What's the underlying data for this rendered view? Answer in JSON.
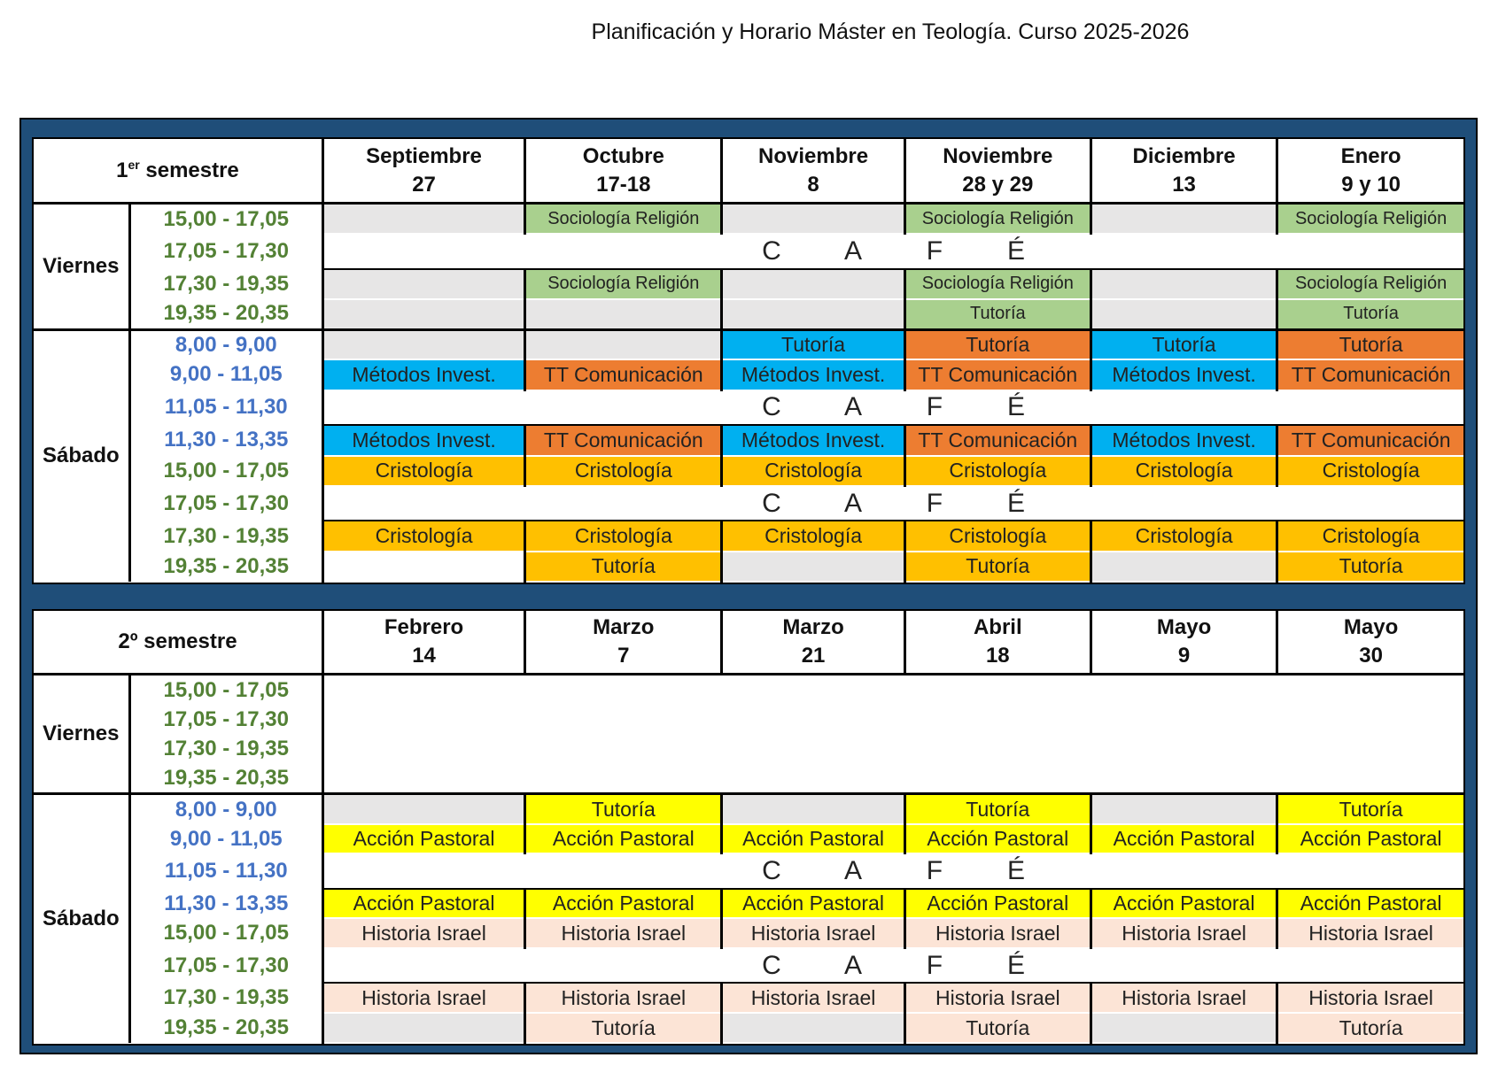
{
  "title": "Planificación y Horario Máster en Teología. Curso 2025-2026",
  "cafe_letters": [
    "C",
    "A",
    "F",
    "É"
  ],
  "semesters": [
    {
      "label_main": "1",
      "label_sup": "er",
      "label_rest": " semestre",
      "dates": [
        {
          "month": "Septiembre",
          "day": "27"
        },
        {
          "month": "Octubre",
          "day": "17-18"
        },
        {
          "month": "Noviembre",
          "day": "8"
        },
        {
          "month": "Noviembre",
          "day": "28 y 29"
        },
        {
          "month": "Diciembre",
          "day": "13"
        },
        {
          "month": "Enero",
          "day": "9 y 10"
        }
      ],
      "viernes": {
        "label": "Viernes",
        "rows": [
          {
            "time": "15,00 - 17,05",
            "cells": [
              {
                "t": "",
                "c": "gray"
              },
              {
                "t": "Sociología Religión",
                "c": "green"
              },
              {
                "t": "",
                "c": "gray"
              },
              {
                "t": "Sociología Religión",
                "c": "green"
              },
              {
                "t": "",
                "c": "gray"
              },
              {
                "t": "Sociología Religión",
                "c": "green"
              }
            ]
          },
          {
            "time": "17,05 - 17,30",
            "cafe": true
          },
          {
            "time": "17,30 - 19,35",
            "cells": [
              {
                "t": "",
                "c": "gray"
              },
              {
                "t": "Sociología Religión",
                "c": "green"
              },
              {
                "t": "",
                "c": "gray"
              },
              {
                "t": "Sociología Religión",
                "c": "green"
              },
              {
                "t": "",
                "c": "gray"
              },
              {
                "t": "Sociología Religión",
                "c": "green"
              }
            ]
          },
          {
            "time": "19,35 - 20,35",
            "cells": [
              {
                "t": "",
                "c": "gray"
              },
              {
                "t": "",
                "c": "gray"
              },
              {
                "t": "",
                "c": "gray"
              },
              {
                "t": "Tutoría",
                "c": "green"
              },
              {
                "t": "",
                "c": "gray"
              },
              {
                "t": "Tutoría",
                "c": "green"
              }
            ]
          }
        ]
      },
      "sabado": {
        "label": "Sábado",
        "rows": [
          {
            "time": "8,00 - 9,00",
            "cells": [
              {
                "t": "",
                "c": "gray"
              },
              {
                "t": "",
                "c": "gray"
              },
              {
                "t": "Tutoría",
                "c": "cyan"
              },
              {
                "t": "Tutoría",
                "c": "orange"
              },
              {
                "t": "Tutoría",
                "c": "cyan"
              },
              {
                "t": "Tutoría",
                "c": "orange"
              }
            ]
          },
          {
            "time": "9,00 - 11,05",
            "cells": [
              {
                "t": "Métodos Invest.",
                "c": "cyan"
              },
              {
                "t": "TT Comunicación",
                "c": "orange"
              },
              {
                "t": "Métodos Invest.",
                "c": "cyan"
              },
              {
                "t": "TT Comunicación",
                "c": "orange"
              },
              {
                "t": "Métodos Invest.",
                "c": "cyan"
              },
              {
                "t": "TT Comunicación",
                "c": "orange"
              }
            ]
          },
          {
            "time": "11,05 - 11,30",
            "cafe": true
          },
          {
            "time": "11,30 - 13,35",
            "cells": [
              {
                "t": "Métodos Invest.",
                "c": "cyan"
              },
              {
                "t": "TT Comunicación",
                "c": "orange"
              },
              {
                "t": "Métodos Invest.",
                "c": "cyan"
              },
              {
                "t": "TT Comunicación",
                "c": "orange"
              },
              {
                "t": "Métodos Invest.",
                "c": "cyan"
              },
              {
                "t": "TT Comunicación",
                "c": "orange"
              }
            ]
          },
          {
            "time": "15,00 - 17,05",
            "cells": [
              {
                "t": "Cristología",
                "c": "amber"
              },
              {
                "t": "Cristología",
                "c": "amber"
              },
              {
                "t": "Cristología",
                "c": "amber"
              },
              {
                "t": "Cristología",
                "c": "amber"
              },
              {
                "t": "Cristología",
                "c": "amber"
              },
              {
                "t": "Cristología",
                "c": "amber"
              }
            ]
          },
          {
            "time": "17,05 - 17,30",
            "cafe": true
          },
          {
            "time": "17,30 - 19,35",
            "cells": [
              {
                "t": "Cristología",
                "c": "amber"
              },
              {
                "t": "Cristología",
                "c": "amber"
              },
              {
                "t": "Cristología",
                "c": "amber"
              },
              {
                "t": "Cristología",
                "c": "amber"
              },
              {
                "t": "Cristología",
                "c": "amber"
              },
              {
                "t": "Cristología",
                "c": "amber"
              }
            ]
          },
          {
            "time": "19,35 - 20,35",
            "cells": [
              {
                "t": "",
                "c": "white"
              },
              {
                "t": "Tutoría",
                "c": "amber"
              },
              {
                "t": "",
                "c": "gray"
              },
              {
                "t": "Tutoría",
                "c": "amber"
              },
              {
                "t": "",
                "c": "gray"
              },
              {
                "t": "Tutoría",
                "c": "amber"
              }
            ]
          }
        ]
      }
    },
    {
      "label_main": "2º",
      "label_sup": "",
      "label_rest": " semestre",
      "dates": [
        {
          "month": "Febrero",
          "day": "14"
        },
        {
          "month": "Marzo",
          "day": "7"
        },
        {
          "month": "Marzo",
          "day": "21"
        },
        {
          "month": "Abril",
          "day": "18"
        },
        {
          "month": "Mayo",
          "day": "9"
        },
        {
          "month": "Mayo",
          "day": "30"
        }
      ],
      "viernes": {
        "label": "Viernes",
        "empty": true,
        "rows": [
          {
            "time": "15,00 - 17,05"
          },
          {
            "time": "17,05 - 17,30"
          },
          {
            "time": "17,30 - 19,35"
          },
          {
            "time": "19,35 - 20,35"
          }
        ]
      },
      "sabado": {
        "label": "Sábado",
        "rows": [
          {
            "time": "8,00 - 9,00",
            "cells": [
              {
                "t": "",
                "c": "gray"
              },
              {
                "t": "Tutoría",
                "c": "yellow"
              },
              {
                "t": "",
                "c": "gray"
              },
              {
                "t": "Tutoría",
                "c": "yellow"
              },
              {
                "t": "",
                "c": "gray"
              },
              {
                "t": "Tutoría",
                "c": "yellow"
              }
            ]
          },
          {
            "time": "9,00 - 11,05",
            "cells": [
              {
                "t": "Acción Pastoral",
                "c": "yellow"
              },
              {
                "t": "Acción Pastoral",
                "c": "yellow"
              },
              {
                "t": "Acción Pastoral",
                "c": "yellow"
              },
              {
                "t": "Acción Pastoral",
                "c": "yellow"
              },
              {
                "t": "Acción Pastoral",
                "c": "yellow"
              },
              {
                "t": "Acción Pastoral",
                "c": "yellow"
              }
            ]
          },
          {
            "time": "11,05 - 11,30",
            "cafe": true
          },
          {
            "time": "11,30 - 13,35",
            "cells": [
              {
                "t": "Acción Pastoral",
                "c": "yellow"
              },
              {
                "t": "Acción Pastoral",
                "c": "yellow"
              },
              {
                "t": "Acción Pastoral",
                "c": "yellow"
              },
              {
                "t": "Acción Pastoral",
                "c": "yellow"
              },
              {
                "t": "Acción Pastoral",
                "c": "yellow"
              },
              {
                "t": "Acción Pastoral",
                "c": "yellow"
              }
            ]
          },
          {
            "time": "15,00 - 17,05",
            "cells": [
              {
                "t": "Historia Israel",
                "c": "peach"
              },
              {
                "t": "Historia Israel",
                "c": "peach"
              },
              {
                "t": "Historia Israel",
                "c": "peach"
              },
              {
                "t": "Historia Israel",
                "c": "peach"
              },
              {
                "t": "Historia Israel",
                "c": "peach"
              },
              {
                "t": "Historia Israel",
                "c": "peach"
              }
            ]
          },
          {
            "time": "17,05 - 17,30",
            "cafe": true
          },
          {
            "time": "17,30 - 19,35",
            "cells": [
              {
                "t": "Historia Israel",
                "c": "peach"
              },
              {
                "t": "Historia Israel",
                "c": "peach"
              },
              {
                "t": "Historia Israel",
                "c": "peach"
              },
              {
                "t": "Historia Israel",
                "c": "peach"
              },
              {
                "t": "Historia Israel",
                "c": "peach"
              },
              {
                "t": "Historia Israel",
                "c": "peach"
              }
            ]
          },
          {
            "time": "19,35 - 20,35",
            "cells": [
              {
                "t": "",
                "c": "gray"
              },
              {
                "t": "Tutoría",
                "c": "peach"
              },
              {
                "t": "",
                "c": "gray"
              },
              {
                "t": "Tutoría",
                "c": "peach"
              },
              {
                "t": "",
                "c": "gray"
              },
              {
                "t": "Tutoría",
                "c": "peach"
              }
            ]
          }
        ]
      }
    }
  ]
}
